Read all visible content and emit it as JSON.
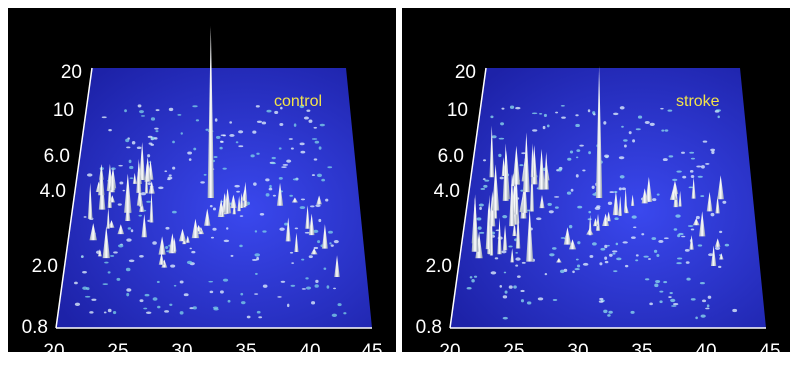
{
  "chart_data": [
    {
      "type": "surface",
      "label": "control",
      "x_ticks": [
        "20",
        "25",
        "30",
        "35",
        "40",
        "45"
      ],
      "y_ticks": [
        "0.8",
        "2.0",
        "4.0",
        "6.0",
        "10",
        "20"
      ],
      "xlim": [
        20,
        45
      ],
      "ylim": [
        0.8,
        20
      ],
      "y_scale": "log",
      "xlabel": "",
      "ylabel": "",
      "tallest_peak": {
        "x": 32,
        "y": 4.0
      }
    },
    {
      "type": "surface",
      "label": "stroke",
      "x_ticks": [
        "20",
        "25",
        "30",
        "35",
        "40",
        "45"
      ],
      "y_ticks": [
        "0.8",
        "2.0",
        "4.0",
        "6.0",
        "10",
        "20"
      ],
      "xlim": [
        20,
        45
      ],
      "ylim": [
        0.8,
        20
      ],
      "y_scale": "log",
      "xlabel": "",
      "ylabel": "",
      "tallest_peak": {
        "x": 31.5,
        "y": 4.0
      }
    }
  ],
  "colors": {
    "background": "#000000",
    "plane": "#2b2fd0",
    "plane_glow": "#3a48ee",
    "peaks": "#e8edf5",
    "spots": "#7fd6e8",
    "tick_text": "#ffffff",
    "label_text": "#f2e34a"
  }
}
